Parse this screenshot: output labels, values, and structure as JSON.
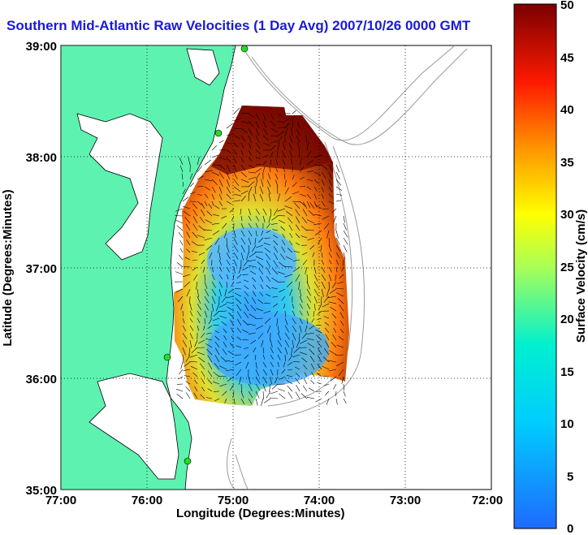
{
  "title": "Southern Mid-Atlantic Raw Velocities (1 Day Avg) 2007/10/26 0000 GMT",
  "xlabel": "Longitude (Degrees:Minutes)",
  "ylabel": "Latitude (Degrees:Minutes)",
  "x_ticks": [
    "77:00",
    "76:00",
    "75:00",
    "74:00",
    "73:00",
    "72:00"
  ],
  "y_ticks": [
    "39:00",
    "38:00",
    "37:00",
    "36:00",
    "35:00"
  ],
  "colorbar": {
    "label": "Surface Velocity (cm/s)",
    "ticks": [
      "50",
      "45",
      "40",
      "35",
      "30",
      "25",
      "20",
      "15",
      "10",
      "5",
      "0"
    ],
    "min": 0,
    "max": 50
  },
  "colors": {
    "land": "#5ef2b0",
    "title": "#1a1ad6",
    "station": "#22dd22"
  },
  "chart_data": {
    "type": "heatmap",
    "title": "Southern Mid-Atlantic Raw Velocities (1 Day Avg) 2007/10/26 0000 GMT",
    "xlabel": "Longitude (Degrees:Minutes)",
    "ylabel": "Latitude (Degrees:Minutes)",
    "xlim": [
      -77.0,
      -72.0
    ],
    "ylim": [
      35.0,
      39.0
    ],
    "grid": true,
    "colorbar_range": [
      0,
      50
    ],
    "colorbar_label": "Surface Velocity (cm/s)"
  }
}
